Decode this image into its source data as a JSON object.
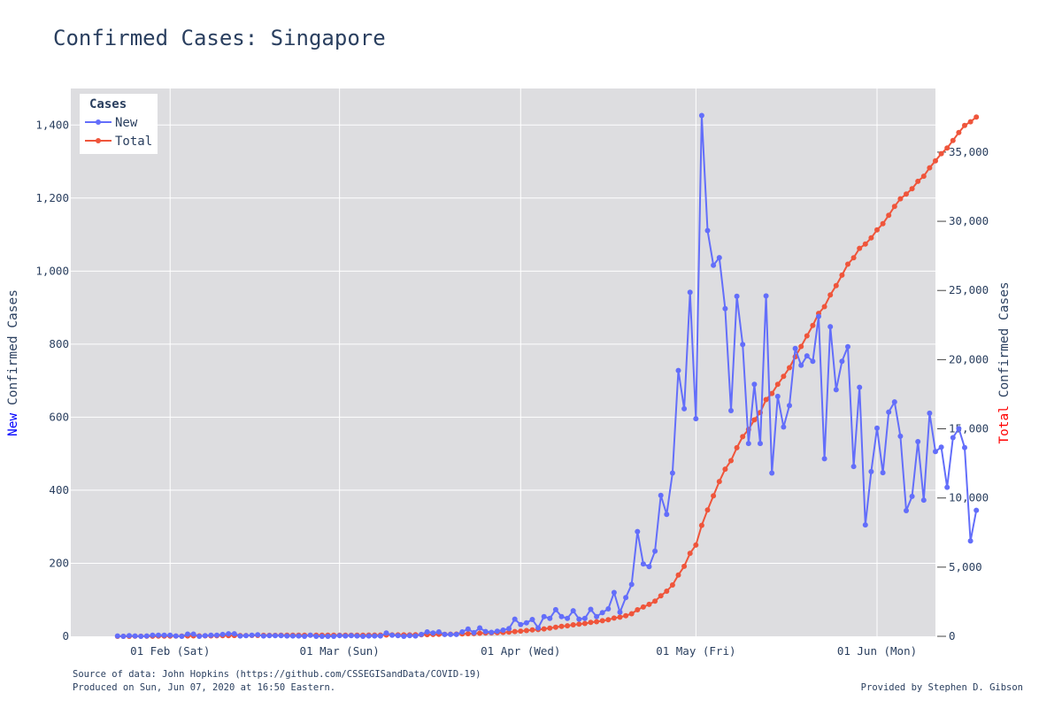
{
  "chart_data": {
    "type": "line",
    "title": "Confirmed Cases: Singapore",
    "y_left": {
      "label_prefix": "New",
      "label_suffix": " Confirmed Cases",
      "prefix_color": "#0000ff",
      "range": [
        0,
        1500
      ],
      "ticks": [
        0,
        200,
        400,
        600,
        800,
        1000,
        1200,
        1400
      ],
      "tick_labels": [
        "0",
        "200",
        "400",
        "600",
        "800",
        "1,000",
        "1,200",
        "1,400"
      ]
    },
    "y_right": {
      "label_prefix": "Total",
      "label_suffix": " Confirmed Cases",
      "prefix_color": "#ff0000",
      "range": [
        0,
        39600
      ],
      "ticks": [
        0,
        5000,
        10000,
        15000,
        20000,
        25000,
        30000,
        35000
      ],
      "tick_labels": [
        "0",
        "5,000",
        "10,000",
        "15,000",
        "20,000",
        "25,000",
        "30,000",
        "35,000"
      ]
    },
    "x_axis": {
      "range": [
        "2020-01-15",
        "2020-06-11"
      ],
      "ticks": [
        "2020-02-01",
        "2020-03-01",
        "2020-04-01",
        "2020-05-01",
        "2020-06-01"
      ],
      "tick_labels": [
        "01 Feb (Sat)",
        "01 Mar (Sun)",
        "01 Apr (Wed)",
        "01 May (Fri)",
        "01 Jun (Mon)"
      ]
    },
    "grid": true,
    "legend": {
      "title": "Cases",
      "position": "top-left"
    },
    "start_date": "2020-01-23",
    "series": [
      {
        "name": "New",
        "axis": "left",
        "color": "#636efa",
        "values": [
          1,
          0,
          2,
          1,
          0,
          1,
          3,
          3,
          3,
          3,
          1,
          0,
          6,
          6,
          0,
          2,
          3,
          3,
          5,
          7,
          7,
          1,
          2,
          3,
          4,
          1,
          2,
          2,
          2,
          1,
          1,
          1,
          0,
          3,
          0,
          0,
          0,
          0,
          2,
          1,
          2,
          1,
          0,
          1,
          1,
          1,
          9,
          3,
          2,
          0,
          2,
          1,
          5,
          12,
          9,
          12,
          5,
          5,
          5,
          12,
          20,
          10,
          23,
          13,
          11,
          14,
          17,
          21,
          47,
          32,
          37,
          46,
          23,
          54,
          49,
          73,
          54,
          49,
          70,
          47,
          49,
          74,
          54,
          65,
          75,
          120,
          66,
          106,
          142,
          287,
          198,
          191,
          233,
          386,
          334,
          447,
          728,
          623,
          942,
          596,
          1426,
          1111,
          1016,
          1037,
          897,
          618,
          931,
          799,
          528,
          690,
          528,
          932,
          447,
          657,
          573,
          632,
          788,
          742,
          768,
          753,
          876,
          486,
          848,
          675,
          753,
          793,
          465,
          682,
          305,
          451,
          570,
          448,
          614,
          642,
          548,
          344,
          383,
          533,
          373,
          611,
          506,
          518,
          408,
          544,
          569,
          517,
          261,
          345
        ]
      },
      {
        "name": "Total",
        "axis": "right",
        "color": "#ef553b",
        "values": [
          1,
          1,
          3,
          4,
          4,
          5,
          8,
          11,
          14,
          17,
          18,
          18,
          24,
          30,
          30,
          32,
          35,
          38,
          43,
          50,
          57,
          58,
          60,
          63,
          67,
          68,
          70,
          72,
          74,
          75,
          76,
          77,
          77,
          80,
          80,
          80,
          80,
          80,
          82,
          83,
          85,
          86,
          86,
          87,
          88,
          89,
          98,
          101,
          103,
          103,
          105,
          106,
          111,
          123,
          132,
          144,
          149,
          154,
          159,
          171,
          191,
          201,
          224,
          237,
          248,
          262,
          279,
          300,
          347,
          379,
          416,
          462,
          485,
          539,
          588,
          661,
          715,
          764,
          834,
          881,
          930,
          1004,
          1058,
          1123,
          1198,
          1318,
          1384,
          1490,
          1632,
          1919,
          2117,
          2308,
          2541,
          2927,
          3261,
          3708,
          4436,
          5059,
          6001,
          6597,
          8023,
          9134,
          10150,
          11187,
          12084,
          12702,
          13633,
          14432,
          14960,
          15650,
          16178,
          17110,
          17557,
          18214,
          18787,
          19419,
          20207,
          20949,
          21717,
          22470,
          23346,
          23832,
          24680,
          25355,
          26108,
          26901,
          27366,
          28048,
          28353,
          28804,
          29374,
          29822,
          30436,
          31078,
          31626,
          31970,
          32353,
          32886,
          33259,
          33870,
          34376,
          34894,
          35302,
          35846,
          36415,
          36932,
          37193,
          37538
        ]
      }
    ],
    "footer_left": [
      "Source of data: John Hopkins (https://github.com/CSSEGISandData/COVID-19)",
      "Produced on Sun, Jun 07, 2020 at 16:50 Eastern."
    ],
    "footer_right": "Provided by Stephen D. Gibson"
  }
}
